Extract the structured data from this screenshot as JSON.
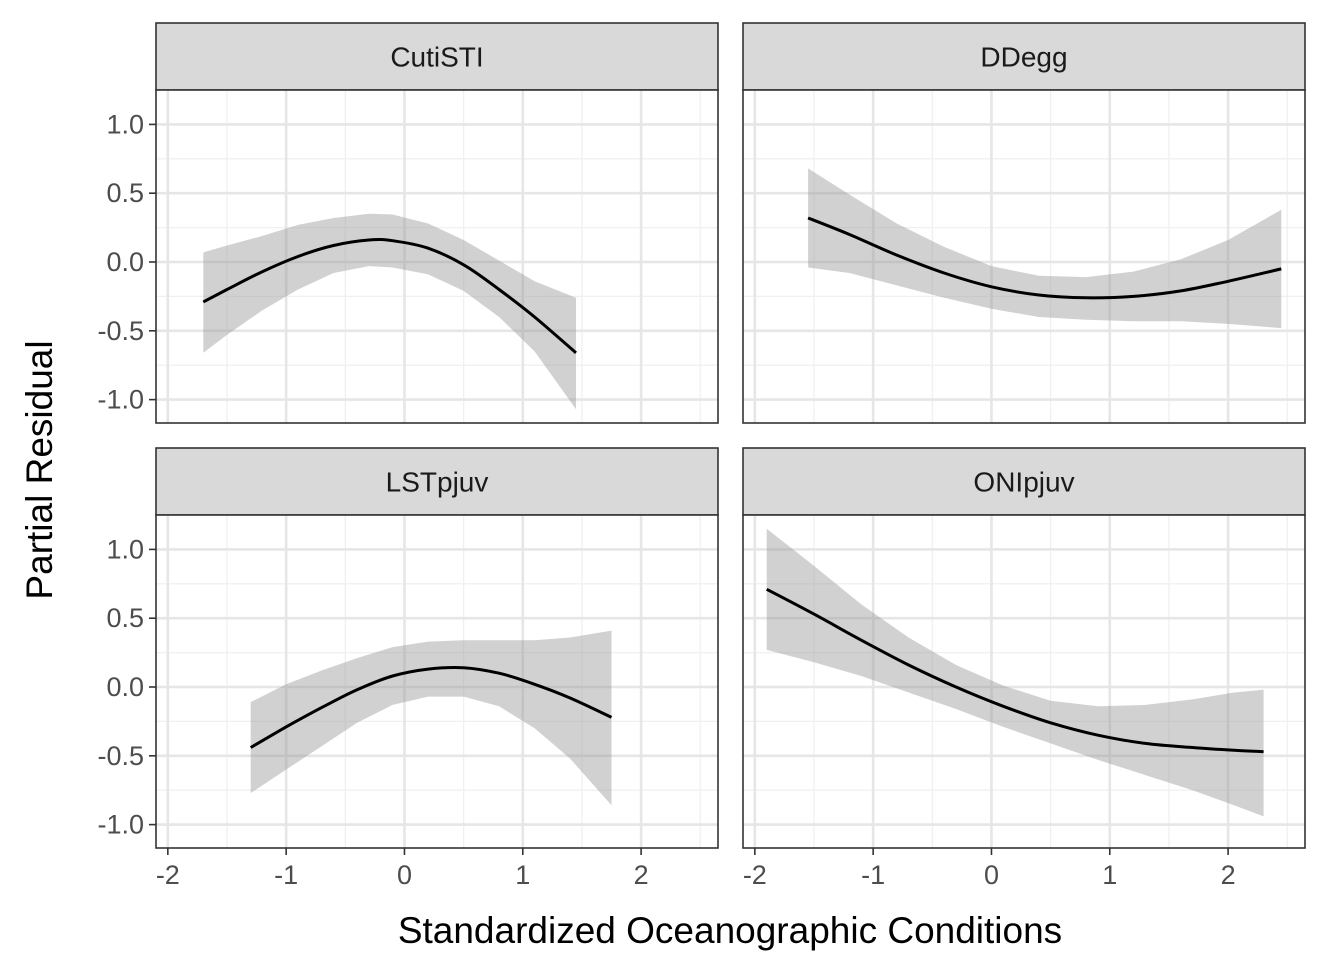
{
  "chart_data": {
    "type": "line",
    "layout": "facet-grid 2x2",
    "xlabel": "Standardized Oceanographic Conditions",
    "ylabel": "Partial Residual",
    "xlim": [
      -2.1,
      2.65
    ],
    "ylim": [
      -1.17,
      1.25
    ],
    "x_ticks": [
      -2,
      -1,
      0,
      1,
      2
    ],
    "x_tick_labels": [
      "-2",
      "-1",
      "0",
      "1",
      "2"
    ],
    "y_ticks": [
      -1.0,
      -0.5,
      0.0,
      0.5,
      1.0
    ],
    "y_tick_labels": [
      "-1.0",
      "-0.5",
      "0.0",
      "0.5",
      "1.0"
    ],
    "grid": true,
    "line_color": "#000000",
    "ribbon_color": "#999999",
    "strip_color": "#d9d9d9",
    "panels": [
      {
        "title": "CutiSTI",
        "x": [
          -1.7,
          -1.5,
          -1.2,
          -0.9,
          -0.6,
          -0.3,
          -0.1,
          0.2,
          0.5,
          0.8,
          1.1,
          1.45
        ],
        "fit": [
          -0.29,
          -0.2,
          -0.07,
          0.04,
          0.12,
          0.16,
          0.155,
          0.1,
          -0.02,
          -0.2,
          -0.4,
          -0.66
        ],
        "lower": [
          -0.66,
          -0.53,
          -0.35,
          -0.2,
          -0.08,
          -0.03,
          -0.04,
          -0.09,
          -0.21,
          -0.4,
          -0.65,
          -1.07
        ],
        "upper": [
          0.07,
          0.12,
          0.19,
          0.27,
          0.32,
          0.35,
          0.345,
          0.28,
          0.16,
          0.01,
          -0.14,
          -0.26
        ]
      },
      {
        "title": "DDegg",
        "x": [
          -1.55,
          -1.2,
          -0.8,
          -0.4,
          0.0,
          0.4,
          0.8,
          1.2,
          1.6,
          2.0,
          2.45
        ],
        "fit": [
          0.32,
          0.2,
          0.05,
          -0.08,
          -0.18,
          -0.24,
          -0.26,
          -0.25,
          -0.21,
          -0.14,
          -0.05
        ],
        "lower": [
          -0.04,
          -0.08,
          -0.17,
          -0.26,
          -0.34,
          -0.4,
          -0.42,
          -0.43,
          -0.43,
          -0.45,
          -0.48
        ],
        "upper": [
          0.68,
          0.49,
          0.28,
          0.11,
          -0.03,
          -0.1,
          -0.11,
          -0.07,
          0.02,
          0.16,
          0.38
        ]
      },
      {
        "title": "LSTpjuv",
        "x": [
          -1.3,
          -1.0,
          -0.7,
          -0.4,
          -0.1,
          0.2,
          0.5,
          0.8,
          1.1,
          1.4,
          1.75
        ],
        "fit": [
          -0.44,
          -0.29,
          -0.15,
          -0.02,
          0.08,
          0.13,
          0.14,
          0.1,
          0.02,
          -0.08,
          -0.22
        ],
        "lower": [
          -0.77,
          -0.6,
          -0.43,
          -0.26,
          -0.13,
          -0.07,
          -0.07,
          -0.14,
          -0.3,
          -0.52,
          -0.86
        ],
        "upper": [
          -0.11,
          0.02,
          0.12,
          0.21,
          0.29,
          0.33,
          0.34,
          0.34,
          0.34,
          0.36,
          0.41
        ]
      },
      {
        "title": "ONIpjuv",
        "x": [
          -1.9,
          -1.5,
          -1.1,
          -0.7,
          -0.3,
          0.1,
          0.5,
          0.9,
          1.3,
          1.7,
          2.05,
          2.3
        ],
        "fit": [
          0.71,
          0.53,
          0.34,
          0.16,
          0.0,
          -0.14,
          -0.26,
          -0.35,
          -0.41,
          -0.44,
          -0.46,
          -0.47
        ],
        "lower": [
          0.27,
          0.18,
          0.08,
          -0.04,
          -0.16,
          -0.29,
          -0.41,
          -0.53,
          -0.64,
          -0.75,
          -0.86,
          -0.94
        ],
        "upper": [
          1.15,
          0.88,
          0.6,
          0.36,
          0.16,
          0.01,
          -0.1,
          -0.14,
          -0.13,
          -0.09,
          -0.04,
          -0.02
        ]
      }
    ]
  }
}
